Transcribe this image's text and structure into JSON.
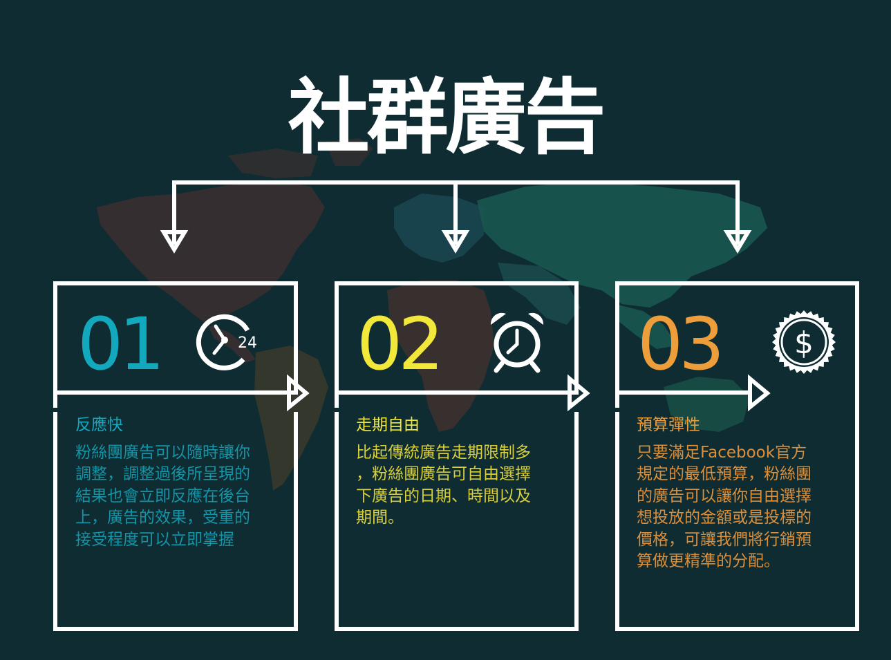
{
  "title": "社群廣告",
  "colors": {
    "background": "#0e2c31",
    "line": "#ffffff",
    "accent1": "#12a9bf",
    "accent2": "#f2e83a",
    "accent3": "#ee9d3b"
  },
  "cards": [
    {
      "number": "01",
      "icon": "clock-24-icon",
      "heading": "反應快",
      "lines": [
        "粉絲團廣告可以隨時讓你",
        "調整，調整過後所呈現的",
        "結果也會立即反應在後台",
        "上，廣告的效果，受重的",
        "接受程度可以立即掌握"
      ],
      "icon_text": "24"
    },
    {
      "number": "02",
      "icon": "alarm-clock-icon",
      "heading": "走期自由",
      "lines": [
        "比起傳統廣告走期限制多",
        "，粉絲團廣告可自由選擇",
        "下廣告的日期、時間以及",
        "期間。"
      ]
    },
    {
      "number": "03",
      "icon": "dollar-badge-icon",
      "heading": "預算彈性",
      "lines": [
        "只要滿足Facebook官方",
        "規定的最低預算，粉絲團",
        "的廣告可以讓你自由選擇",
        "想投放的金額或是投標的",
        "價格，可讓我們將行銷預",
        "算做更精準的分配。"
      ]
    }
  ]
}
